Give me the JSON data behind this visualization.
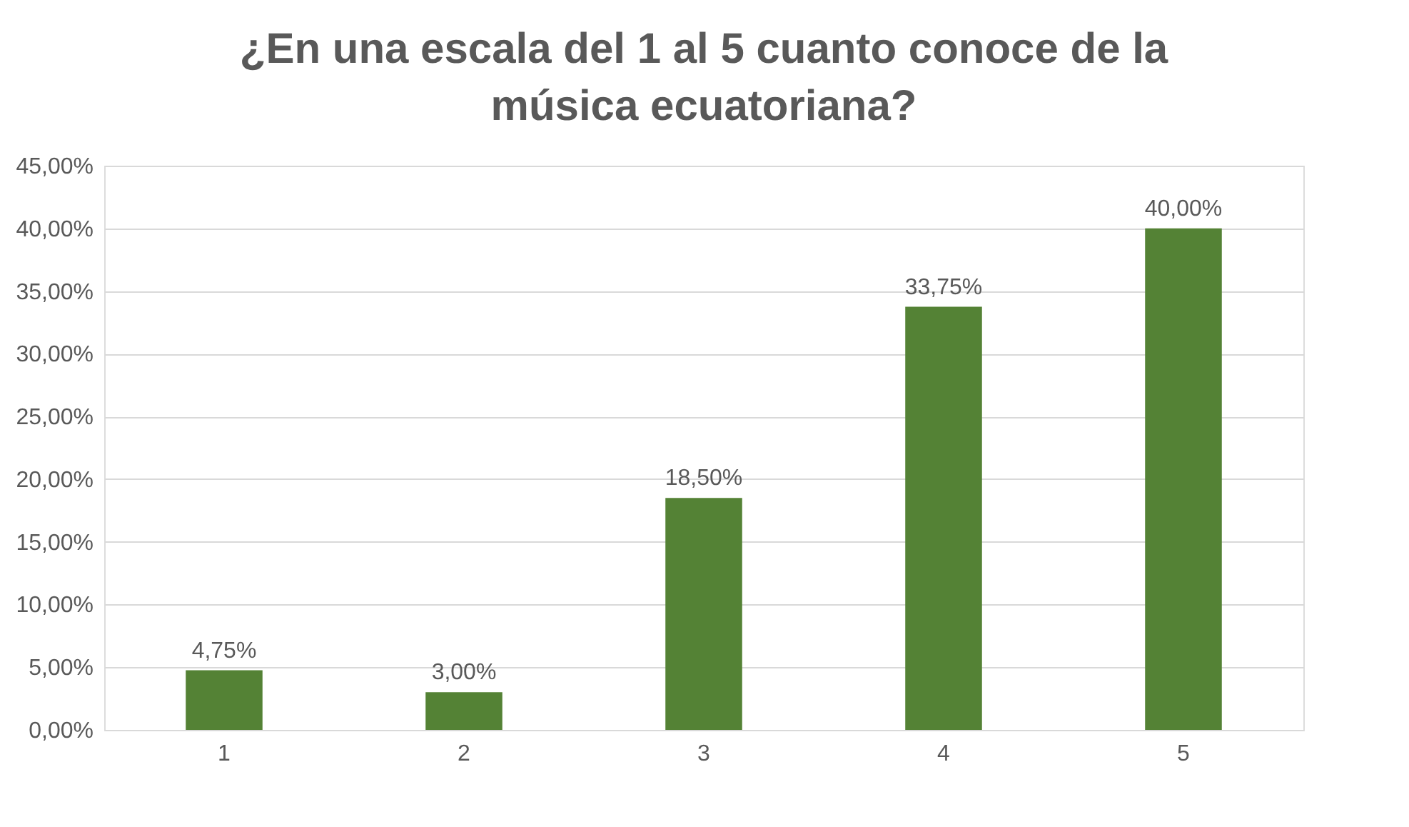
{
  "chart_data": {
    "type": "bar",
    "title": "¿En una escala del 1 al 5 cuanto conoce de la música ecuatoriana?",
    "categories": [
      "1",
      "2",
      "3",
      "4",
      "5"
    ],
    "values": [
      4.75,
      3.0,
      18.5,
      33.75,
      40.0
    ],
    "value_labels": [
      "4,75%",
      "3,00%",
      "18,50%",
      "33,75%",
      "40,00%"
    ],
    "color": "#548235",
    "ylim": [
      0,
      45
    ],
    "yticks": [
      {
        "value": 0,
        "label": "0,00%"
      },
      {
        "value": 5,
        "label": "5,00%"
      },
      {
        "value": 10,
        "label": "10,00%"
      },
      {
        "value": 15,
        "label": "15,00%"
      },
      {
        "value": 20,
        "label": "20,00%"
      },
      {
        "value": 25,
        "label": "25,00%"
      },
      {
        "value": 30,
        "label": "30,00%"
      },
      {
        "value": 35,
        "label": "35,00%"
      },
      {
        "value": 40,
        "label": "40,00%"
      },
      {
        "value": 45,
        "label": "45,00%"
      }
    ],
    "grid": "y"
  }
}
